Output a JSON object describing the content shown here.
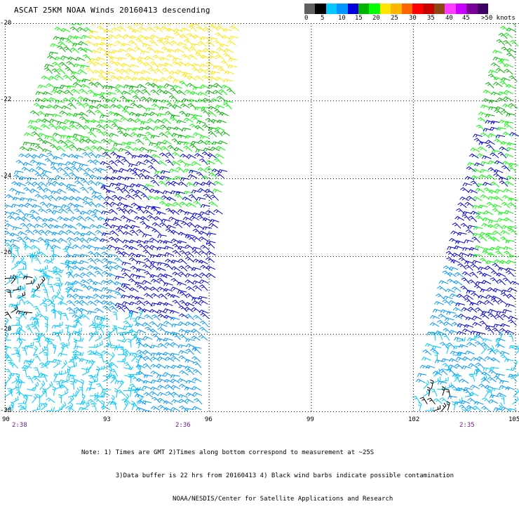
{
  "title": "ASCAT 25KM NOAA Winds 20160413 descending",
  "colorbar": {
    "colors": [
      "#606060",
      "#000000",
      "#00c8ff",
      "#0096ff",
      "#0000dc",
      "#00b400",
      "#00ff00",
      "#ffe600",
      "#ffb400",
      "#ff6400",
      "#ff0000",
      "#c80000",
      "#8c4614",
      "#ff3cff",
      "#c800ff",
      "#780096",
      "#3c0064"
    ],
    "labels": [
      "0",
      "5",
      "10",
      "15",
      "20",
      "25",
      "30",
      "35",
      "40",
      "45",
      ">50 knots"
    ]
  },
  "y_axis": {
    "labels": [
      "-20",
      "-22",
      "-24",
      "-26",
      "-28",
      "-30"
    ]
  },
  "x_axis": {
    "labels": [
      "90",
      "93",
      "96",
      "99",
      "102",
      "105"
    ]
  },
  "pass_times": [
    "2:38",
    "2:36",
    "2:35"
  ],
  "notes": [
    "Note: 1) Times are GMT 2)Times along bottom correspond to measurement at ~25S",
    "         3)Data buffer is 22 hrs from 20160413 4) Black wind barbs indicate possible contamination",
    "                        NOAA/NESDIS/Center for Satellite Applications and Research"
  ],
  "map": {
    "lat_range": [
      -30,
      -20
    ],
    "lon_range": [
      90,
      105
    ],
    "grid": "dotted",
    "wind_colors": {
      "calm": "#000000",
      "light": "#00c8ff",
      "moderate": "#0096ff",
      "fresh": "#0000dc",
      "strong": "#00b400",
      "very_strong": "#00ff00",
      "gale": "#ffe600"
    }
  }
}
